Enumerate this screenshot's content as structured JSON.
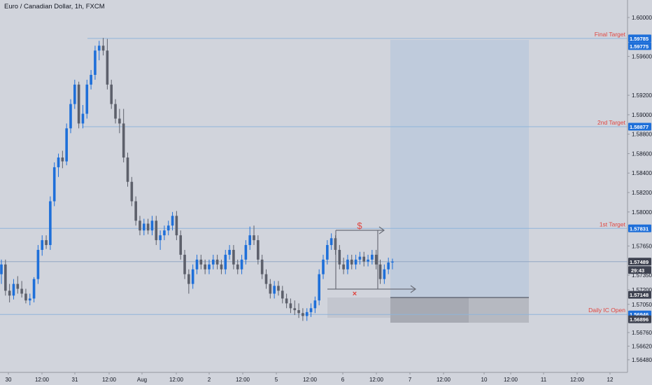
{
  "title": "Euro / Canadian Dollar, 1h, FXCM",
  "colors": {
    "background": "#d1d4dc",
    "up": "#1e6fd9",
    "down": "#5d606b",
    "level_line": "#8fb4da",
    "level_label": "#e0443e",
    "tag_blue": "#1e6fd9",
    "tag_dark": "#3e4250",
    "target_zone": "#bcc9dc",
    "stop_zone": "#b2b5be"
  },
  "chart_data": {
    "type": "candlestick",
    "symbol": "Euro / Canadian Dollar",
    "timeframe": "1h",
    "source": "FXCM",
    "x_tick_labels": [
      "30",
      "12:00",
      "31",
      "12:00",
      "Aug",
      "12:00",
      "2",
      "12:00",
      "5",
      "12:00",
      "6",
      "12:00",
      "7",
      "12:00",
      "10",
      "12:00",
      "11",
      "12:00",
      "12"
    ],
    "y_tick_labels": [
      "1.60000",
      "1.59600",
      "1.59200",
      "1.59000",
      "1.58800",
      "1.58600",
      "1.58400",
      "1.58200",
      "1.58000",
      "1.57650",
      "1.57350",
      "1.57200",
      "1.57050",
      "1.56760",
      "1.56620",
      "1.56480"
    ],
    "ylim": [
      1.5635,
      1.6018
    ],
    "levels": [
      {
        "label": "Final Target",
        "price": 1.59785
      },
      {
        "label": "2nd Target",
        "price": 1.58877
      },
      {
        "label": "1st Target",
        "price": 1.57831
      },
      {
        "label": "Daily IC Open",
        "price": 1.56946
      }
    ],
    "current_price": 1.57489,
    "countdown": "29:43",
    "price_tags": [
      "1.59785",
      "1.59775",
      "1.58877",
      "1.57831",
      "1.57489",
      "1.57148",
      "1.56946",
      "1.56896"
    ],
    "annotations": {
      "profit_marker": "$",
      "loss_marker": "×"
    },
    "candles": [
      [
        1.5736,
        1.5751,
        1.5726,
        1.5746
      ],
      [
        1.5746,
        1.5751,
        1.5714,
        1.5719
      ],
      [
        1.5719,
        1.5726,
        1.5707,
        1.5714
      ],
      [
        1.5714,
        1.5731,
        1.571,
        1.5726
      ],
      [
        1.5726,
        1.5734,
        1.5716,
        1.5721
      ],
      [
        1.5721,
        1.5729,
        1.5712,
        1.5716
      ],
      [
        1.5716,
        1.5721,
        1.5706,
        1.5709
      ],
      [
        1.5709,
        1.5716,
        1.5704,
        1.5711
      ],
      [
        1.5711,
        1.5733,
        1.5707,
        1.5731
      ],
      [
        1.5731,
        1.5766,
        1.5726,
        1.5761
      ],
      [
        1.5761,
        1.5776,
        1.5755,
        1.5771
      ],
      [
        1.5771,
        1.5776,
        1.5762,
        1.5766
      ],
      [
        1.5766,
        1.5816,
        1.5761,
        1.5811
      ],
      [
        1.5811,
        1.5851,
        1.5806,
        1.5846
      ],
      [
        1.5846,
        1.586,
        1.5836,
        1.5856
      ],
      [
        1.5856,
        1.5863,
        1.5845,
        1.5852
      ],
      [
        1.5852,
        1.5891,
        1.5848,
        1.5886
      ],
      [
        1.5886,
        1.5916,
        1.5881,
        1.5911
      ],
      [
        1.5911,
        1.5936,
        1.5906,
        1.5931
      ],
      [
        1.5931,
        1.5934,
        1.5886,
        1.5891
      ],
      [
        1.5891,
        1.591,
        1.5886,
        1.5901
      ],
      [
        1.5901,
        1.5936,
        1.5896,
        1.5931
      ],
      [
        1.5931,
        1.5946,
        1.5926,
        1.5941
      ],
      [
        1.5941,
        1.5971,
        1.5936,
        1.5966
      ],
      [
        1.5966,
        1.5976,
        1.5956,
        1.5971
      ],
      [
        1.5971,
        1.5979,
        1.5961,
        1.5966
      ],
      [
        1.5966,
        1.5978,
        1.5926,
        1.5931
      ],
      [
        1.5931,
        1.5936,
        1.5906,
        1.5911
      ],
      [
        1.5911,
        1.5916,
        1.5891,
        1.5896
      ],
      [
        1.5896,
        1.5906,
        1.5881,
        1.5891
      ],
      [
        1.5891,
        1.5906,
        1.5851,
        1.5856
      ],
      [
        1.5856,
        1.5861,
        1.5826,
        1.5831
      ],
      [
        1.5831,
        1.5836,
        1.5806,
        1.5811
      ],
      [
        1.5811,
        1.5816,
        1.5786,
        1.5791
      ],
      [
        1.5791,
        1.5796,
        1.5776,
        1.5781
      ],
      [
        1.5781,
        1.5793,
        1.5776,
        1.5788
      ],
      [
        1.5788,
        1.5793,
        1.5777,
        1.5781
      ],
      [
        1.5781,
        1.5796,
        1.5776,
        1.5791
      ],
      [
        1.5791,
        1.5796,
        1.5766,
        1.5771
      ],
      [
        1.5771,
        1.5781,
        1.5761,
        1.5776
      ],
      [
        1.5776,
        1.5786,
        1.5771,
        1.5781
      ],
      [
        1.5781,
        1.5791,
        1.5776,
        1.5786
      ],
      [
        1.5786,
        1.58,
        1.5781,
        1.5796
      ],
      [
        1.5796,
        1.5801,
        1.5771,
        1.5776
      ],
      [
        1.5776,
        1.5781,
        1.5751,
        1.5756
      ],
      [
        1.5756,
        1.5761,
        1.5731,
        1.5736
      ],
      [
        1.5736,
        1.5741,
        1.5716,
        1.5726
      ],
      [
        1.5726,
        1.5746,
        1.5721,
        1.5741
      ],
      [
        1.5741,
        1.5756,
        1.5736,
        1.5751
      ],
      [
        1.5751,
        1.5756,
        1.5741,
        1.5746
      ],
      [
        1.5746,
        1.5751,
        1.5736,
        1.5741
      ],
      [
        1.5741,
        1.5751,
        1.5736,
        1.5746
      ],
      [
        1.5746,
        1.5756,
        1.5741,
        1.5751
      ],
      [
        1.5751,
        1.5756,
        1.5741,
        1.5746
      ],
      [
        1.5746,
        1.5751,
        1.5736,
        1.5741
      ],
      [
        1.5741,
        1.5761,
        1.5736,
        1.5756
      ],
      [
        1.5756,
        1.5766,
        1.5751,
        1.5761
      ],
      [
        1.5761,
        1.5766,
        1.5741,
        1.5746
      ],
      [
        1.5746,
        1.5751,
        1.5736,
        1.5741
      ],
      [
        1.5741,
        1.5756,
        1.5736,
        1.5751
      ],
      [
        1.5751,
        1.5771,
        1.5746,
        1.5766
      ],
      [
        1.5766,
        1.5785,
        1.5761,
        1.5776
      ],
      [
        1.5776,
        1.5786,
        1.5766,
        1.5771
      ],
      [
        1.5771,
        1.5776,
        1.5746,
        1.5751
      ],
      [
        1.5751,
        1.5756,
        1.5731,
        1.5736
      ],
      [
        1.5736,
        1.5741,
        1.5721,
        1.5726
      ],
      [
        1.5726,
        1.5731,
        1.5711,
        1.5716
      ],
      [
        1.5716,
        1.5729,
        1.5711,
        1.5724
      ],
      [
        1.5724,
        1.5729,
        1.5714,
        1.5719
      ],
      [
        1.5719,
        1.5724,
        1.5706,
        1.5711
      ],
      [
        1.5711,
        1.5716,
        1.5701,
        1.5706
      ],
      [
        1.5706,
        1.5711,
        1.5696,
        1.5701
      ],
      [
        1.5701,
        1.5709,
        1.5694,
        1.5699
      ],
      [
        1.5699,
        1.5706,
        1.5691,
        1.5696
      ],
      [
        1.5696,
        1.5701,
        1.5688,
        1.5693
      ],
      [
        1.5693,
        1.5701,
        1.5688,
        1.5697
      ],
      [
        1.5697,
        1.5706,
        1.5692,
        1.5701
      ],
      [
        1.5701,
        1.5713,
        1.5696,
        1.5709
      ],
      [
        1.5709,
        1.5741,
        1.5704,
        1.5736
      ],
      [
        1.5736,
        1.5756,
        1.5731,
        1.5751
      ],
      [
        1.5751,
        1.5771,
        1.5746,
        1.5766
      ],
      [
        1.5766,
        1.5778,
        1.5761,
        1.5773
      ],
      [
        1.5773,
        1.5776,
        1.5756,
        1.5761
      ],
      [
        1.5761,
        1.5766,
        1.5741,
        1.5746
      ],
      [
        1.5746,
        1.5753,
        1.5736,
        1.5741
      ],
      [
        1.5741,
        1.5756,
        1.5736,
        1.5751
      ],
      [
        1.5751,
        1.5756,
        1.5741,
        1.5746
      ],
      [
        1.5746,
        1.5756,
        1.5741,
        1.5751
      ],
      [
        1.5751,
        1.5759,
        1.5746,
        1.5754
      ],
      [
        1.5754,
        1.5759,
        1.5744,
        1.5749
      ],
      [
        1.5749,
        1.5756,
        1.5744,
        1.5751
      ],
      [
        1.5751,
        1.5761,
        1.5746,
        1.5756
      ],
      [
        1.5756,
        1.5761,
        1.5741,
        1.5746
      ],
      [
        1.5746,
        1.5751,
        1.5726,
        1.5731
      ],
      [
        1.5731,
        1.5746,
        1.5726,
        1.5741
      ],
      [
        1.5741,
        1.5753,
        1.5736,
        1.5748
      ],
      [
        1.5748,
        1.5752,
        1.5741,
        1.5749
      ]
    ]
  }
}
